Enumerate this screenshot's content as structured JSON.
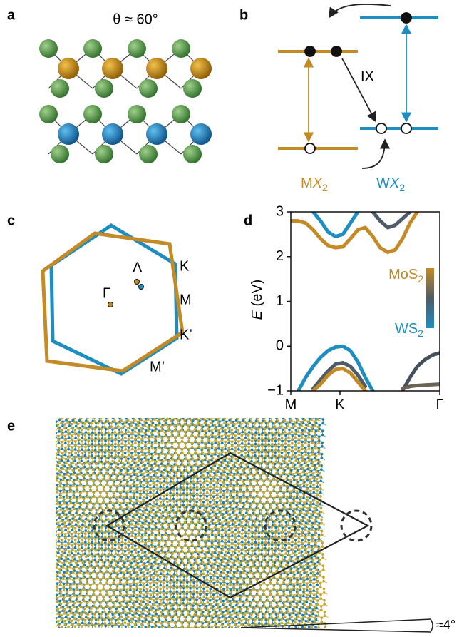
{
  "panel_labels": [
    "a",
    "b",
    "c",
    "d",
    "e"
  ],
  "a": {
    "title": "θ ≈ 60°"
  },
  "b": {
    "annotation": "IX",
    "left": {
      "m": "M",
      "x": "X",
      "sub": "2"
    },
    "right": {
      "m": "W",
      "x": "X",
      "sub": "2"
    }
  },
  "c": {
    "labels": [
      "K",
      "M",
      "K’",
      "M’",
      "Γ",
      "Λ"
    ]
  },
  "chart_data": {
    "type": "line",
    "ylabel": {
      "symbol": "E",
      "unit": "(eV)"
    },
    "xlim": [
      0,
      1
    ],
    "xticks": [
      {
        "value": 0,
        "label": "M"
      },
      {
        "value": 0.33,
        "label": "K"
      },
      {
        "value": 1,
        "label": "Γ"
      }
    ],
    "ylim": [
      -1,
      3
    ],
    "yticks": [
      {
        "value": -1,
        "label": "−1"
      },
      0,
      1,
      2,
      3
    ],
    "legend": [
      {
        "text": "MoS",
        "sub": "2",
        "color": "#c48a26"
      },
      {
        "text": "WS",
        "sub": "2",
        "color": "#1e8dc0"
      }
    ],
    "x": [
      0,
      0.05,
      0.1,
      0.15,
      0.2,
      0.25,
      0.3,
      0.35,
      0.4,
      0.45,
      0.5,
      0.55,
      0.6,
      0.65,
      0.7,
      0.75,
      0.8,
      0.85,
      0.9,
      0.95,
      1
    ],
    "series": [
      {
        "color": "#c48a26",
        "values": [
          2.8,
          2.8,
          2.75,
          2.6,
          2.4,
          2.25,
          2.2,
          2.22,
          2.4,
          2.6,
          2.65,
          2.45,
          2.2,
          2.1,
          2.15,
          2.4,
          2.75,
          3.0,
          null,
          null,
          null
        ]
      },
      {
        "color": "#1e8dc0",
        "values": [
          null,
          null,
          null,
          3.0,
          2.8,
          2.55,
          2.45,
          2.5,
          2.75,
          3.0,
          null,
          null,
          null,
          null,
          null,
          null,
          null,
          null,
          null,
          null,
          null
        ]
      },
      {
        "color": "#4f5b66",
        "values": [
          null,
          null,
          null,
          null,
          null,
          null,
          null,
          null,
          null,
          null,
          null,
          3.0,
          2.8,
          2.65,
          2.7,
          2.85,
          3.0,
          null,
          null,
          null,
          null
        ]
      },
      {
        "color": "#1e8dc0",
        "values": [
          null,
          -1,
          -0.7,
          -0.45,
          -0.25,
          -0.1,
          -0.02,
          0,
          -0.1,
          -0.35,
          -0.7,
          -1,
          null,
          null,
          null,
          null,
          null,
          null,
          null,
          null,
          null
        ]
      },
      {
        "color": "#4f5b66",
        "values": [
          null,
          null,
          null,
          -0.95,
          -0.75,
          -0.55,
          -0.4,
          -0.37,
          -0.45,
          -0.65,
          -0.9,
          null,
          null,
          null,
          null,
          null,
          null,
          null,
          null,
          null,
          null
        ]
      },
      {
        "color": "#c48a26",
        "values": [
          null,
          null,
          null,
          -1,
          -0.85,
          -0.65,
          -0.52,
          -0.5,
          -0.6,
          -0.8,
          -1,
          null,
          null,
          null,
          null,
          null,
          null,
          null,
          null,
          null,
          null
        ]
      },
      {
        "color": "#44515c",
        "values": [
          null,
          null,
          null,
          null,
          null,
          null,
          null,
          null,
          null,
          null,
          null,
          null,
          null,
          null,
          null,
          -1,
          -0.7,
          -0.45,
          -0.3,
          -0.2,
          -0.15
        ]
      },
      {
        "color": "#6b6258",
        "values": [
          null,
          null,
          null,
          null,
          null,
          null,
          null,
          null,
          null,
          null,
          null,
          null,
          null,
          null,
          null,
          -0.95,
          -0.9,
          -0.88,
          -0.87,
          -0.86,
          -0.85
        ]
      }
    ]
  },
  "e": {
    "angle": "≈4°"
  }
}
